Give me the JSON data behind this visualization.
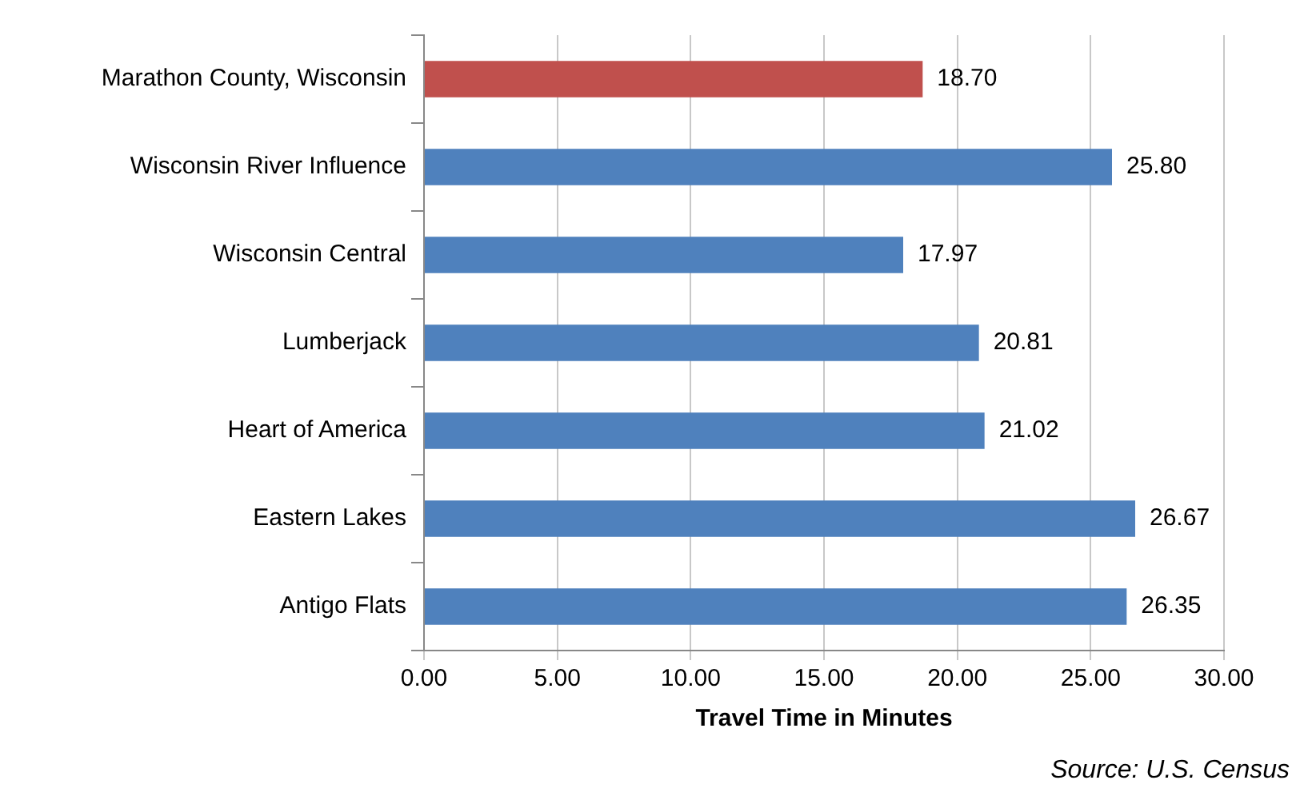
{
  "chart_data": {
    "type": "bar",
    "orientation": "horizontal",
    "xlabel": "Travel Time in Minutes",
    "categories": [
      "Marathon County, Wisconsin",
      "Wisconsin River Influence",
      "Wisconsin Central",
      "Lumberjack",
      "Heart of America",
      "Eastern Lakes",
      "Antigo Flats"
    ],
    "values": [
      18.7,
      25.8,
      17.97,
      20.81,
      21.02,
      26.67,
      26.35
    ],
    "value_labels": [
      "18.70",
      "25.80",
      "17.97",
      "20.81",
      "21.02",
      "26.67",
      "26.35"
    ],
    "colors": [
      "#c0504d",
      "#4f81bd",
      "#4f81bd",
      "#4f81bd",
      "#4f81bd",
      "#4f81bd",
      "#4f81bd"
    ],
    "xlim": [
      0,
      30
    ],
    "xticks": [
      {
        "value": 0,
        "label": "0.00"
      },
      {
        "value": 5,
        "label": "5.00"
      },
      {
        "value": 10,
        "label": "10.00"
      },
      {
        "value": 15,
        "label": "15.00"
      },
      {
        "value": 20,
        "label": "20.00"
      },
      {
        "value": 25,
        "label": "25.00"
      },
      {
        "value": 30,
        "label": "30.00"
      }
    ],
    "grid": "x",
    "legend": false,
    "annotations": [
      "Source: U.S. Census"
    ]
  }
}
